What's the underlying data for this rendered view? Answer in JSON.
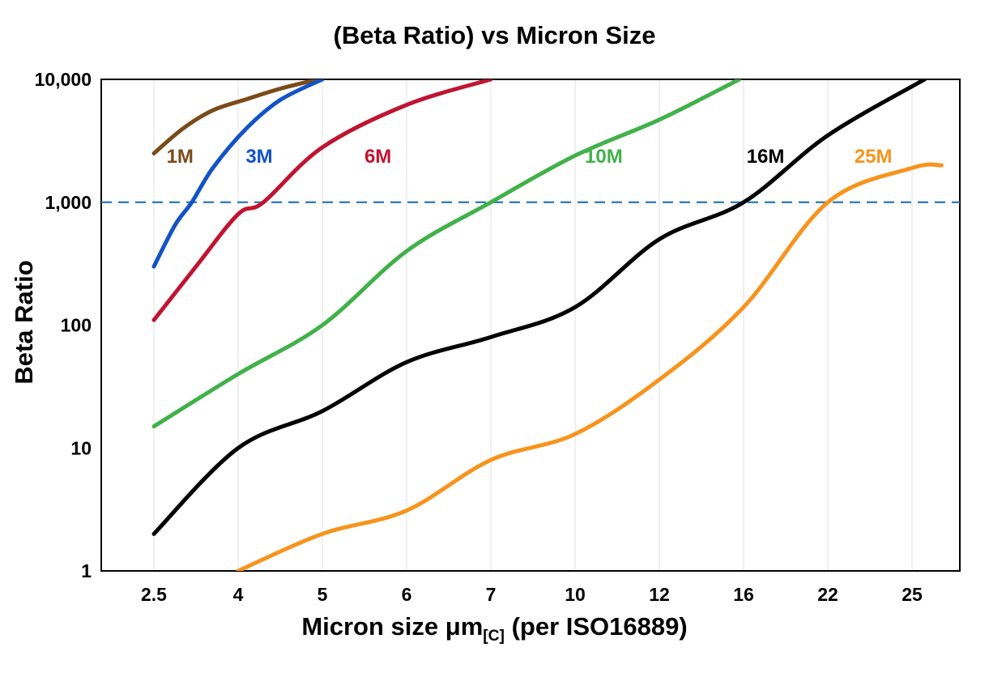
{
  "chart_data": {
    "type": "line",
    "title": "(Beta Ratio) vs Micron Size",
    "ylabel": "Beta Ratio",
    "xlabel_parts": {
      "main": "Micron size μm",
      "sub": "[C]",
      "rest": " (per ISO16889)"
    },
    "x_scale": "categorical",
    "y_scale": "log",
    "ylim": [
      1,
      10000
    ],
    "x_categories": [
      "2.5",
      "4",
      "5",
      "6",
      "7",
      "10",
      "12",
      "16",
      "22",
      "25"
    ],
    "y_tick_labels": [
      "1",
      "10",
      "100",
      "1,000",
      "10,000"
    ],
    "y_tick_values": [
      1,
      10,
      100,
      1000,
      10000
    ],
    "grid": {
      "vertical": true,
      "horizontal": false,
      "color": "#e2e2e2"
    },
    "legend_position": "inline-labels",
    "reference_line": {
      "value": 1000,
      "color": "#2e75b6",
      "style": "dashed"
    },
    "series": [
      {
        "name": "1M",
        "color": "#7a4a18",
        "label_x": 0.31,
        "label_value": 2300,
        "points": [
          [
            0,
            2500
          ],
          [
            0.35,
            4000
          ],
          [
            0.7,
            5600
          ],
          [
            1.1,
            6900
          ],
          [
            1.5,
            8400
          ],
          [
            1.95,
            10000
          ]
        ]
      },
      {
        "name": "3M",
        "color": "#1353c8",
        "label_x": 1.25,
        "label_value": 2300,
        "points": [
          [
            0,
            300
          ],
          [
            0.25,
            650
          ],
          [
            0.45,
            1000
          ],
          [
            0.7,
            1900
          ],
          [
            1.1,
            4000
          ],
          [
            1.5,
            6800
          ],
          [
            2.0,
            10000
          ]
        ]
      },
      {
        "name": "6M",
        "color": "#c01431",
        "label_x": 2.66,
        "label_value": 2300,
        "points": [
          [
            0,
            110
          ],
          [
            0.5,
            300
          ],
          [
            1,
            800
          ],
          [
            1.3,
            1000
          ],
          [
            2,
            2800
          ],
          [
            3,
            6200
          ],
          [
            4,
            10000
          ]
        ]
      },
      {
        "name": "10M",
        "color": "#41b149",
        "label_x": 5.34,
        "label_value": 2300,
        "points": [
          [
            0,
            15
          ],
          [
            1,
            40
          ],
          [
            2,
            100
          ],
          [
            3,
            400
          ],
          [
            4,
            1000
          ],
          [
            5,
            2400
          ],
          [
            6,
            4700
          ],
          [
            6.95,
            10000
          ]
        ]
      },
      {
        "name": "16M",
        "color": "#000000",
        "label_x": 7.26,
        "label_value": 2300,
        "points": [
          [
            0,
            2
          ],
          [
            1,
            10
          ],
          [
            2,
            20
          ],
          [
            3,
            50
          ],
          [
            4,
            80
          ],
          [
            5,
            140
          ],
          [
            6,
            500
          ],
          [
            7,
            1000
          ],
          [
            8,
            3500
          ],
          [
            9.15,
            10000
          ]
        ]
      },
      {
        "name": "25M",
        "color": "#f7941d",
        "label_x": 8.54,
        "label_value": 2300,
        "points": [
          [
            1,
            1
          ],
          [
            2,
            2
          ],
          [
            3,
            3.1
          ],
          [
            4,
            8
          ],
          [
            5,
            13
          ],
          [
            6,
            36
          ],
          [
            7,
            140
          ],
          [
            8,
            1000
          ],
          [
            9,
            1900
          ],
          [
            9.35,
            2000
          ]
        ]
      }
    ]
  }
}
